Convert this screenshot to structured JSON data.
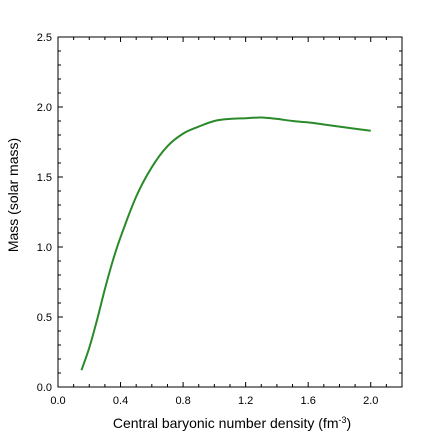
{
  "chart_data": {
    "type": "line",
    "xlabel": "Central baryonic number density (fm",
    "xlabel_sup": "-3",
    "xlabel_end": ")",
    "ylabel": "Mass (solar mass)",
    "xlim": [
      0.0,
      2.2
    ],
    "ylim": [
      0.0,
      2.5
    ],
    "x_ticks": [
      "0.0",
      "0.4",
      "0.8",
      "1.2",
      "1.6",
      "2.0"
    ],
    "x_tick_values": [
      0.0,
      0.4,
      0.8,
      1.2,
      1.6,
      2.0
    ],
    "y_ticks": [
      "0.0",
      "0.5",
      "1.0",
      "1.5",
      "2.0",
      "2.5"
    ],
    "y_tick_values": [
      0.0,
      0.5,
      1.0,
      1.5,
      2.0,
      2.5
    ],
    "grid": false,
    "series": [
      {
        "color": "#2a8a2a",
        "x": [
          0.15,
          0.2,
          0.25,
          0.3,
          0.35,
          0.4,
          0.5,
          0.6,
          0.7,
          0.8,
          0.9,
          1.0,
          1.1,
          1.2,
          1.3,
          1.4,
          1.5,
          1.6,
          1.7,
          1.8,
          1.9,
          2.0
        ],
        "y": [
          0.12,
          0.28,
          0.48,
          0.7,
          0.9,
          1.07,
          1.36,
          1.57,
          1.72,
          1.81,
          1.86,
          1.9,
          1.915,
          1.92,
          1.925,
          1.915,
          1.9,
          1.89,
          1.875,
          1.86,
          1.845,
          1.83
        ]
      }
    ]
  }
}
